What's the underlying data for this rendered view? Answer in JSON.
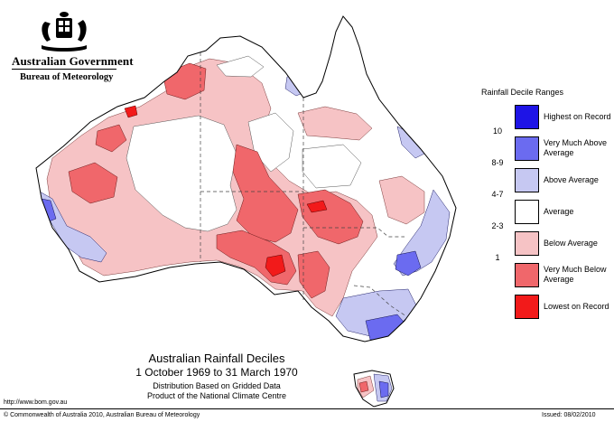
{
  "header": {
    "government": "Australian Government",
    "bureau": "Bureau of Meteorology"
  },
  "legend": {
    "title": "Rainfall Decile Ranges",
    "items": [
      {
        "label": "Highest on Record",
        "range": "",
        "color": "#1e14e6"
      },
      {
        "label": "Very Much Above Average",
        "range": "10",
        "color": "#6b6bf0"
      },
      {
        "label": "Above Average",
        "range": "8-9",
        "color": "#c6c8f2"
      },
      {
        "label": "Average",
        "range": "4-7",
        "color": "#ffffff"
      },
      {
        "label": "Below Average",
        "range": "2-3",
        "color": "#f6c3c5"
      },
      {
        "label": "Very Much Below Average",
        "range": "1",
        "color": "#f0676b"
      },
      {
        "label": "Lowest on Record",
        "range": "",
        "color": "#f21a1a"
      }
    ]
  },
  "caption": {
    "title": "Australian Rainfall Deciles",
    "dates": "1 October 1969 to 31 March 1970",
    "line1": "Distribution Based on Gridded Data",
    "line2": "Product of the National Climate Centre"
  },
  "footer": {
    "url": "http://www.bom.gov.au",
    "copyright": "© Commonwealth of Australia 2010, Australian Bureau of Meteorology",
    "issued": "Issued: 08/02/2010"
  }
}
